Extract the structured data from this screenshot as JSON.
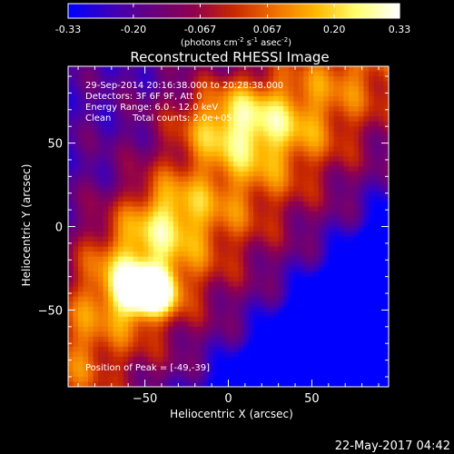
{
  "colorbar": {
    "ticks": [
      "-0.33",
      "-0.20",
      "-0.067",
      "0.067",
      "0.20",
      "0.33"
    ],
    "tick_values": [
      -0.33,
      -0.2,
      -0.067,
      0.067,
      0.2,
      0.33
    ],
    "range": [
      -0.33,
      0.33
    ],
    "unit_main": "(photons cm",
    "unit_sup1": "-2",
    "unit_mid1": " s",
    "unit_sup2": "-1",
    "unit_mid2": " asec",
    "unit_sup3": "-2",
    "unit_end": ")",
    "colormap": [
      "#0000ff",
      "#3d00bb",
      "#66007f",
      "#8f0050",
      "#c82800",
      "#f07000",
      "#ffb800",
      "#ffff70",
      "#ffffff"
    ]
  },
  "chart_data": {
    "type": "heatmap",
    "title": "Reconstructed RHESSI Image",
    "xlabel": "Heliocentric X (arcsec)",
    "ylabel": "Heliocentric Y (arcsec)",
    "xlim": [
      -96,
      96
    ],
    "ylim": [
      -96,
      96
    ],
    "xticks": [
      -50,
      0,
      50
    ],
    "yticks": [
      -50,
      0,
      50
    ],
    "xtick_labels": [
      "−50",
      "0",
      "50"
    ],
    "ytick_labels": [
      "−50",
      "0",
      "50"
    ],
    "grid": false,
    "peak": [
      -49,
      -39
    ],
    "annotations": {
      "time": "29-Sep-2014 20:16:38.000 to 20:28:38.000",
      "detectors": "Detectors: 3F 6F 9F, Att 0",
      "energy": "Energy Range: 6.0 - 12.0 keV",
      "algorithm": "Clean",
      "counts": "Total counts: 2.0e+05",
      "peak_label": "Position of Peak = [-49,-39]"
    }
  },
  "footer": {
    "timestamp": "22-May-2017 04:42"
  }
}
